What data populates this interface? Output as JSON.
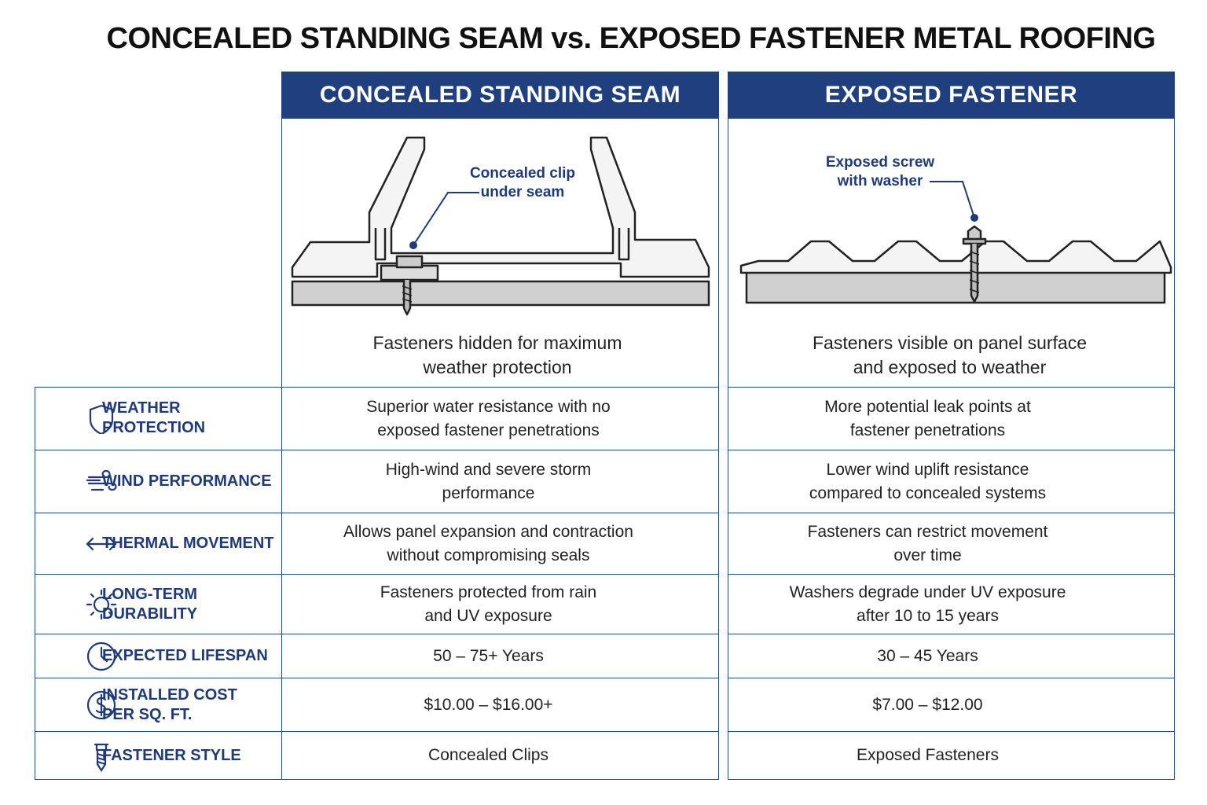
{
  "title": "CONCEALED STANDING SEAM vs. EXPOSED FASTENER METAL ROOFING",
  "columns": [
    {
      "header": "CONCEALED STANDING SEAM",
      "callout": [
        "Concealed clip",
        "under seam"
      ],
      "caption": [
        "Fasteners hidden for maximum",
        "weather protection"
      ]
    },
    {
      "header": "EXPOSED FASTENER",
      "callout": [
        "Exposed screw",
        "with washer"
      ],
      "caption": [
        "Fasteners visible on panel surface",
        "and exposed to weather"
      ]
    }
  ],
  "rows": [
    {
      "label": [
        "WEATHER PROTECTION"
      ],
      "cells": [
        [
          "Superior water resistance with no",
          "exposed fastener penetrations"
        ],
        [
          "More potential leak points at",
          "fastener penetrations"
        ]
      ]
    },
    {
      "label": [
        "WIND PERFORMANCE"
      ],
      "cells": [
        [
          "High-wind and severe storm",
          "performance"
        ],
        [
          "Lower wind uplift resistance",
          "compared to concealed systems"
        ]
      ]
    },
    {
      "label": [
        "THERMAL MOVEMENT"
      ],
      "cells": [
        [
          "Allows panel expansion and contraction",
          "without compromising seals"
        ],
        [
          "Fasteners can restrict movement",
          "over time"
        ]
      ]
    },
    {
      "label": [
        "LONG-TERM DURABILITY"
      ],
      "cells": [
        [
          "Fasteners protected from rain",
          "and UV exposure"
        ],
        [
          "Washers degrade under UV exposure",
          "after 10 to 15 years"
        ]
      ]
    },
    {
      "label": [
        "EXPECTED LIFESPAN"
      ],
      "cells": [
        [
          "50 – 75+ Years"
        ],
        [
          "30 – 45 Years"
        ]
      ]
    },
    {
      "label": [
        "INSTALLED COST",
        "PER SQ. FT."
      ],
      "cells": [
        [
          "$10.00 – $16.00+"
        ],
        [
          "$7.00 – $12.00"
        ]
      ]
    },
    {
      "label": [
        "FASTENER STYLE"
      ],
      "cells": [
        [
          "Concealed Clips"
        ],
        [
          "Exposed Fasteners"
        ]
      ]
    }
  ]
}
